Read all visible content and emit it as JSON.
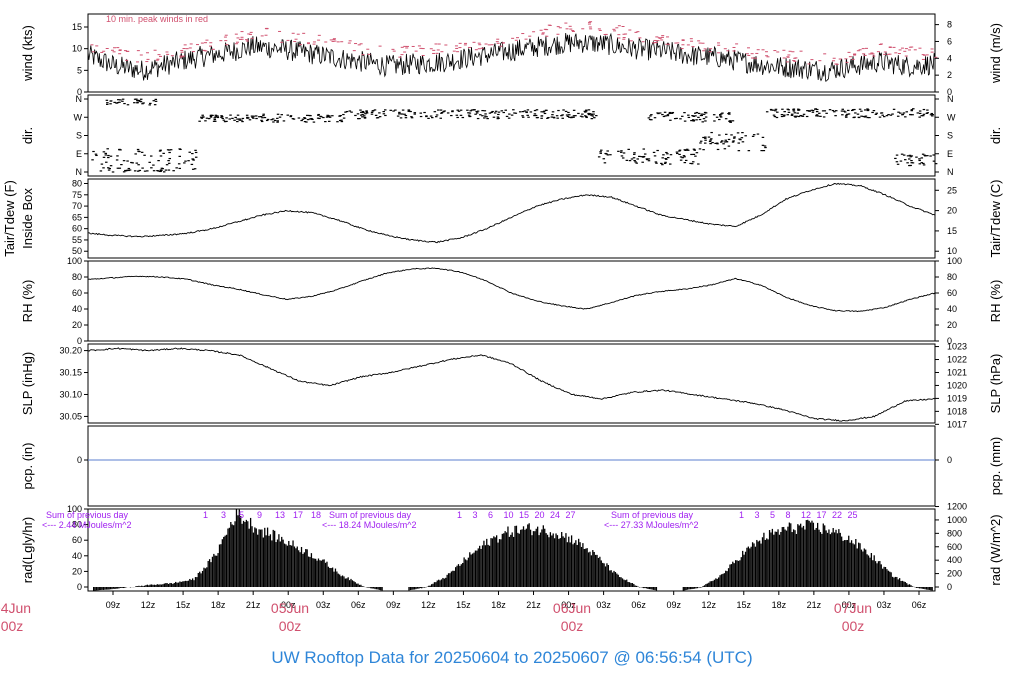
{
  "title": "UW Rooftop Data for 20250604  to  20250607 @ 06:56:54  (UTC)",
  "colors": {
    "accent": "#d0506e",
    "title": "#2f86d8",
    "note": "#a020f0",
    "zero_line": "#5b7fcf"
  },
  "x_axis": {
    "hour_ticks": [
      "09z",
      "12z",
      "15z",
      "18z",
      "21z",
      "00z",
      "03z",
      "06z",
      "09z",
      "12z",
      "15z",
      "18z",
      "21z",
      "00z",
      "03z",
      "06z",
      "09z",
      "12z",
      "15z",
      "18z",
      "21z",
      "00z",
      "03z",
      "06z"
    ],
    "date_labels": [
      {
        "day": "04Jun",
        "time": "00z"
      },
      {
        "day": "05Jun",
        "time": "00z"
      },
      {
        "day": "06Jun",
        "time": "00z"
      },
      {
        "day": "07Jun",
        "time": "00z"
      }
    ]
  },
  "chart_data": [
    {
      "type": "line",
      "panel": "wind",
      "ylabel_left": "wind (kts)",
      "ylabel_right": "wind (m/s)",
      "annotation": "10 min. peak winds in red",
      "ylim": [
        0,
        18
      ],
      "left_ticks": [
        "0",
        "5",
        "10",
        "15"
      ],
      "right_ticks": [
        "0",
        "2",
        "4",
        "6",
        "8"
      ],
      "series": [
        {
          "values": [
            8.5,
            6,
            5,
            6.5,
            8,
            9,
            10.5,
            10,
            9,
            8,
            7,
            6,
            6.5,
            7,
            8,
            9,
            10,
            11,
            11.5,
            11,
            10,
            9.5,
            8.5,
            8,
            7,
            6,
            5.5,
            5,
            6,
            7,
            6,
            6.5
          ]
        },
        {
          "values": [
            11,
            9,
            8,
            9,
            10.5,
            12,
            13.5,
            13,
            12,
            11,
            10,
            9,
            9.5,
            10,
            11,
            12,
            13,
            14.5,
            15,
            14.5,
            13,
            12.5,
            11,
            10.5,
            9.5,
            8.5,
            8,
            7.5,
            8.5,
            10,
            9,
            9
          ]
        }
      ]
    },
    {
      "type": "scatter",
      "panel": "dir",
      "ylabel_left": "dir.",
      "ylabel_right": "dir.",
      "left_ticks": [
        "N",
        "E",
        "S",
        "W",
        "N"
      ],
      "right_ticks": [
        "N",
        "E",
        "S",
        "W",
        "N"
      ]
    },
    {
      "type": "line",
      "panel": "temperature",
      "ylabel_left": "Tair/Tdew (F)",
      "ylabel_left2": "Inside Box",
      "ylabel_right": "Tair/Tdew (C)",
      "ylim": [
        47,
        82
      ],
      "left_ticks": [
        "50",
        "55",
        "60",
        "65",
        "70",
        "75",
        "80"
      ],
      "right_ticks": [
        "10",
        "15",
        "20",
        "25"
      ],
      "series": [
        {
          "values": [
            58,
            57,
            56.5,
            57,
            58,
            60,
            63,
            66,
            68,
            67,
            64,
            60,
            57,
            55,
            54,
            56,
            60,
            65,
            70,
            73,
            75,
            74,
            70,
            66,
            64,
            62,
            61,
            66,
            73,
            77,
            80,
            79,
            75,
            70,
            66
          ]
        }
      ]
    },
    {
      "type": "line",
      "panel": "rh",
      "ylabel_left": "RH (%)",
      "ylabel_right": "RH (%)",
      "ylim": [
        0,
        100
      ],
      "left_ticks": [
        "0",
        "20",
        "40",
        "60",
        "80",
        "100"
      ],
      "right_ticks": [
        "0",
        "20",
        "40",
        "60",
        "80",
        "100"
      ],
      "series": [
        {
          "values": [
            77,
            79,
            81,
            80,
            77,
            70,
            65,
            58,
            52,
            56,
            64,
            75,
            85,
            90,
            91,
            86,
            75,
            60,
            50,
            44,
            40,
            48,
            57,
            62,
            65,
            70,
            78,
            70,
            55,
            44,
            38,
            37,
            42,
            52,
            60
          ]
        }
      ]
    },
    {
      "type": "line",
      "panel": "slp",
      "ylabel_left": "SLP (inHg)",
      "ylabel_right": "SLP (hPa)",
      "ylim": [
        30.035,
        30.215
      ],
      "left_ticks": [
        "30.05",
        "30.10",
        "30.15",
        "30.20"
      ],
      "right_ticks": [
        "1017",
        "1018",
        "1019",
        "1020",
        "1021",
        "1022",
        "1023"
      ],
      "series": [
        {
          "values": [
            30.2,
            30.205,
            30.2,
            30.205,
            30.2,
            30.19,
            30.16,
            30.13,
            30.12,
            30.14,
            30.15,
            30.165,
            30.18,
            30.19,
            30.17,
            30.13,
            30.1,
            30.09,
            30.105,
            30.11,
            30.1,
            30.09,
            30.08,
            30.065,
            30.045,
            30.04,
            30.05,
            30.085,
            30.09
          ]
        }
      ]
    },
    {
      "type": "line",
      "panel": "pcp",
      "ylabel_left": "pcp. (in)",
      "ylabel_right": "pcp. (mm)",
      "left_ticks": [
        "0"
      ],
      "right_ticks": [
        "0"
      ],
      "series": [
        {
          "values": [
            0,
            0
          ]
        }
      ]
    },
    {
      "type": "area",
      "panel": "radiation",
      "ylabel_left": "rad(Lgly/hr)",
      "ylabel_right": "rad (W/m^2)",
      "ylim": [
        0,
        100
      ],
      "left_ticks": [
        "0",
        "20",
        "40",
        "60",
        "80",
        "100"
      ],
      "right_ticks": [
        "0",
        "200",
        "400",
        "600",
        "800",
        "1000",
        "1200"
      ],
      "annotations": [
        {
          "line1": "Sum of previous day",
          "line2": "<--- 2.44 MJoules/m^2"
        },
        {
          "line1": "Sum of previous day",
          "line2": "<--- 18.24 MJoules/m^2"
        },
        {
          "line1": "Sum of previous day",
          "line2": "<--- 27.33 MJoules/m^2"
        }
      ],
      "count_labels": [
        [
          "1",
          "3",
          "5",
          "9",
          "13",
          "17",
          "18"
        ],
        [
          "1",
          "3",
          "6",
          "10",
          "15",
          "20",
          "24",
          "27"
        ],
        [
          "1",
          "3",
          "5",
          "8",
          "12",
          "17",
          "22",
          "25"
        ]
      ],
      "series": [
        {
          "values": [
            0,
            2,
            5,
            8,
            10,
            15,
            45,
            100,
            80,
            68,
            55,
            40,
            20,
            6,
            0,
            0,
            5,
            20,
            45,
            65,
            77,
            80,
            76,
            65,
            45,
            20,
            5,
            0,
            0,
            5,
            22,
            50,
            70,
            80,
            83,
            79,
            66,
            45,
            20,
            5,
            0
          ]
        }
      ]
    }
  ]
}
